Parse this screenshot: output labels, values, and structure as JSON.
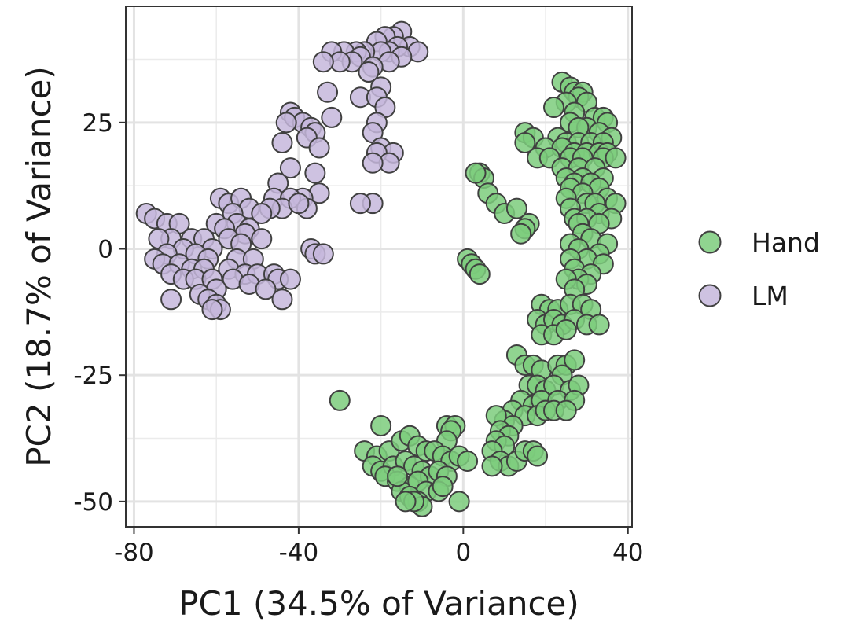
{
  "chart_data": {
    "type": "scatter",
    "title": "",
    "xlabel": "PC1 (34.5% of Variance)",
    "ylabel": "PC2 (18.7% of Variance)",
    "xlim": [
      -82,
      41
    ],
    "ylim": [
      -55,
      48
    ],
    "x_ticks": [
      -80,
      -40,
      0,
      40
    ],
    "x_tick_labels": [
      "-80",
      "-40",
      "0",
      "40"
    ],
    "y_ticks": [
      -50,
      -25,
      0,
      25
    ],
    "y_tick_labels": [
      "-50",
      "-25",
      "0",
      "25"
    ],
    "grid": true,
    "legend": "right",
    "series": [
      {
        "name": "Hand",
        "color": "#7ccd7c",
        "points": [
          [
            24,
            33
          ],
          [
            26,
            32
          ],
          [
            27,
            31
          ],
          [
            29,
            31
          ],
          [
            28,
            30
          ],
          [
            25,
            29
          ],
          [
            30,
            29
          ],
          [
            22,
            28
          ],
          [
            27,
            27
          ],
          [
            32,
            26
          ],
          [
            34,
            26
          ],
          [
            35,
            25
          ],
          [
            26,
            25
          ],
          [
            30,
            24
          ],
          [
            28,
            24
          ],
          [
            33,
            23
          ],
          [
            36,
            22
          ],
          [
            15,
            23
          ],
          [
            17,
            22
          ],
          [
            23,
            22
          ],
          [
            25,
            21
          ],
          [
            28,
            21
          ],
          [
            31,
            21
          ],
          [
            34,
            21
          ],
          [
            15,
            21
          ],
          [
            20,
            20
          ],
          [
            24,
            20
          ],
          [
            27,
            19
          ],
          [
            30,
            19
          ],
          [
            33,
            19
          ],
          [
            35,
            19
          ],
          [
            18,
            18
          ],
          [
            21,
            18
          ],
          [
            26,
            18
          ],
          [
            29,
            18
          ],
          [
            34,
            18
          ],
          [
            37,
            18
          ],
          [
            24,
            16
          ],
          [
            28,
            16
          ],
          [
            32,
            16
          ],
          [
            25,
            14
          ],
          [
            29,
            14
          ],
          [
            34,
            14
          ],
          [
            4,
            15
          ],
          [
            5,
            14
          ],
          [
            3,
            15
          ],
          [
            27,
            13
          ],
          [
            31,
            13
          ],
          [
            26,
            12
          ],
          [
            33,
            12
          ],
          [
            6,
            11
          ],
          [
            29,
            11
          ],
          [
            35,
            10
          ],
          [
            25,
            10
          ],
          [
            30,
            9
          ],
          [
            37,
            9
          ],
          [
            8,
            9
          ],
          [
            32,
            9
          ],
          [
            26,
            8
          ],
          [
            33,
            7
          ],
          [
            10,
            7
          ],
          [
            27,
            6
          ],
          [
            30,
            6
          ],
          [
            36,
            6
          ],
          [
            28,
            5
          ],
          [
            33,
            5
          ],
          [
            13,
            8
          ],
          [
            16,
            5
          ],
          [
            15,
            4
          ],
          [
            14,
            3
          ],
          [
            29,
            3
          ],
          [
            31,
            2
          ],
          [
            35,
            1
          ],
          [
            26,
            1
          ],
          [
            28,
            0
          ],
          [
            33,
            -1
          ],
          [
            30,
            -2
          ],
          [
            26,
            -2
          ],
          [
            34,
            -3
          ],
          [
            27,
            -4
          ],
          [
            31,
            -5
          ],
          [
            28,
            -6
          ],
          [
            25,
            -6
          ],
          [
            30,
            -7
          ],
          [
            27,
            -8
          ],
          [
            1,
            -2
          ],
          [
            2,
            -3
          ],
          [
            3,
            -4
          ],
          [
            4,
            -5
          ],
          [
            19,
            -11
          ],
          [
            21,
            -12
          ],
          [
            23,
            -12
          ],
          [
            26,
            -11
          ],
          [
            29,
            -11
          ],
          [
            31,
            -12
          ],
          [
            18,
            -14
          ],
          [
            20,
            -15
          ],
          [
            22,
            -14
          ],
          [
            24,
            -15
          ],
          [
            27,
            -14
          ],
          [
            30,
            -15
          ],
          [
            33,
            -15
          ],
          [
            19,
            -17
          ],
          [
            22,
            -17
          ],
          [
            25,
            -16
          ],
          [
            13,
            -21
          ],
          [
            15,
            -23
          ],
          [
            17,
            -23
          ],
          [
            19,
            -24
          ],
          [
            23,
            -23
          ],
          [
            25,
            -23
          ],
          [
            27,
            -22
          ],
          [
            24,
            -25
          ],
          [
            16,
            -27
          ],
          [
            18,
            -27
          ],
          [
            20,
            -28
          ],
          [
            22,
            -27
          ],
          [
            26,
            -28
          ],
          [
            28,
            -27
          ],
          [
            14,
            -30
          ],
          [
            17,
            -31
          ],
          [
            19,
            -30
          ],
          [
            23,
            -30
          ],
          [
            27,
            -30
          ],
          [
            12,
            -32
          ],
          [
            15,
            -33
          ],
          [
            18,
            -33
          ],
          [
            20,
            -32
          ],
          [
            22,
            -32
          ],
          [
            25,
            -32
          ],
          [
            10,
            -34
          ],
          [
            12,
            -35
          ],
          [
            8,
            -33
          ],
          [
            9,
            -36
          ],
          [
            11,
            -37
          ],
          [
            8,
            -38
          ],
          [
            10,
            -39
          ],
          [
            7,
            -40
          ],
          [
            9,
            -42
          ],
          [
            11,
            -43
          ],
          [
            13,
            -42
          ],
          [
            15,
            -40
          ],
          [
            17,
            -40
          ],
          [
            18,
            -41
          ],
          [
            7,
            -43
          ],
          [
            -30,
            -30
          ],
          [
            -20,
            -35
          ],
          [
            -4,
            -35
          ],
          [
            -2,
            -35
          ],
          [
            -3,
            -36
          ],
          [
            -4,
            -38
          ],
          [
            -24,
            -40
          ],
          [
            -21,
            -41
          ],
          [
            -18,
            -40
          ],
          [
            -15,
            -38
          ],
          [
            -13,
            -37
          ],
          [
            -11,
            -39
          ],
          [
            -9,
            -40
          ],
          [
            -7,
            -40
          ],
          [
            -5,
            -41
          ],
          [
            -3,
            -42
          ],
          [
            -1,
            -41
          ],
          [
            1,
            -42
          ],
          [
            -22,
            -43
          ],
          [
            -20,
            -44
          ],
          [
            -17,
            -43
          ],
          [
            -14,
            -42
          ],
          [
            -12,
            -43
          ],
          [
            -10,
            -44
          ],
          [
            -8,
            -45
          ],
          [
            -6,
            -44
          ],
          [
            -4,
            -45
          ],
          [
            -19,
            -45
          ],
          [
            -16,
            -46
          ],
          [
            -13,
            -47
          ],
          [
            -11,
            -46
          ],
          [
            -9,
            -48
          ],
          [
            -6,
            -48
          ],
          [
            -15,
            -48
          ],
          [
            -13,
            -49
          ],
          [
            -11,
            -50
          ],
          [
            -10,
            -51
          ],
          [
            -12,
            -50
          ],
          [
            -14,
            -50
          ],
          [
            -1,
            -50
          ],
          [
            -5,
            -47
          ],
          [
            -16,
            -45
          ]
        ]
      },
      {
        "name": "LM",
        "color": "#c5b7dc",
        "points": [
          [
            -15,
            43
          ],
          [
            -17,
            42
          ],
          [
            -19,
            42
          ],
          [
            -21,
            41
          ],
          [
            -13,
            40
          ],
          [
            -16,
            40
          ],
          [
            -18,
            39
          ],
          [
            -20,
            39
          ],
          [
            -24,
            39
          ],
          [
            -26,
            39
          ],
          [
            -29,
            39
          ],
          [
            -32,
            39
          ],
          [
            -11,
            39
          ],
          [
            -15,
            38
          ],
          [
            -25,
            38
          ],
          [
            -27,
            37
          ],
          [
            -30,
            37
          ],
          [
            -34,
            37
          ],
          [
            -18,
            37
          ],
          [
            -22,
            36
          ],
          [
            -23,
            35
          ],
          [
            -20,
            32
          ],
          [
            -33,
            31
          ],
          [
            -25,
            30
          ],
          [
            -21,
            30
          ],
          [
            -19,
            28
          ],
          [
            -42,
            27
          ],
          [
            -41,
            26
          ],
          [
            -39,
            25
          ],
          [
            -43,
            25
          ],
          [
            -37,
            24
          ],
          [
            -32,
            26
          ],
          [
            -36,
            23
          ],
          [
            -21,
            25
          ],
          [
            -22,
            23
          ],
          [
            -38,
            22
          ],
          [
            -44,
            21
          ],
          [
            -20,
            20
          ],
          [
            -17,
            19
          ],
          [
            -35,
            20
          ],
          [
            -21,
            19
          ],
          [
            -18,
            17
          ],
          [
            -22,
            17
          ],
          [
            -42,
            16
          ],
          [
            -36,
            15
          ],
          [
            -45,
            13
          ],
          [
            -35,
            11
          ],
          [
            -46,
            10
          ],
          [
            -39,
            10
          ],
          [
            -42,
            10
          ],
          [
            -22,
            9
          ],
          [
            -25,
            9
          ],
          [
            -44,
            8
          ],
          [
            -47,
            8
          ],
          [
            -38,
            8
          ],
          [
            -40,
            9
          ],
          [
            -77,
            7
          ],
          [
            -75,
            6
          ],
          [
            -72,
            5
          ],
          [
            -69,
            5
          ],
          [
            -59,
            10
          ],
          [
            -57,
            9
          ],
          [
            -54,
            10
          ],
          [
            -52,
            8
          ],
          [
            -56,
            7
          ],
          [
            -49,
            7
          ],
          [
            -60,
            5
          ],
          [
            -55,
            5
          ],
          [
            -52,
            4
          ],
          [
            -58,
            4
          ],
          [
            -53,
            3
          ],
          [
            -66,
            2
          ],
          [
            -63,
            2
          ],
          [
            -71,
            2
          ],
          [
            -74,
            2
          ],
          [
            -57,
            2
          ],
          [
            -54,
            1
          ],
          [
            -49,
            2
          ],
          [
            -61,
            0
          ],
          [
            -68,
            0
          ],
          [
            -37,
            0
          ],
          [
            -36,
            -1
          ],
          [
            -34,
            -1
          ],
          [
            -72,
            -1
          ],
          [
            -65,
            -1
          ],
          [
            -62,
            -2
          ],
          [
            -55,
            -2
          ],
          [
            -51,
            -2
          ],
          [
            -75,
            -2
          ],
          [
            -73,
            -3
          ],
          [
            -69,
            -3
          ],
          [
            -66,
            -4
          ],
          [
            -63,
            -4
          ],
          [
            -57,
            -4
          ],
          [
            -53,
            -5
          ],
          [
            -50,
            -5
          ],
          [
            -46,
            -5
          ],
          [
            -71,
            -5
          ],
          [
            -68,
            -6
          ],
          [
            -65,
            -6
          ],
          [
            -61,
            -6
          ],
          [
            -56,
            -6
          ],
          [
            -52,
            -7
          ],
          [
            -45,
            -6
          ],
          [
            -42,
            -6
          ],
          [
            -60,
            -8
          ],
          [
            -64,
            -9
          ],
          [
            -48,
            -8
          ],
          [
            -71,
            -10
          ],
          [
            -62,
            -10
          ],
          [
            -60,
            -11
          ],
          [
            -44,
            -10
          ],
          [
            -59,
            -12
          ],
          [
            -61,
            -12
          ]
        ]
      }
    ]
  }
}
